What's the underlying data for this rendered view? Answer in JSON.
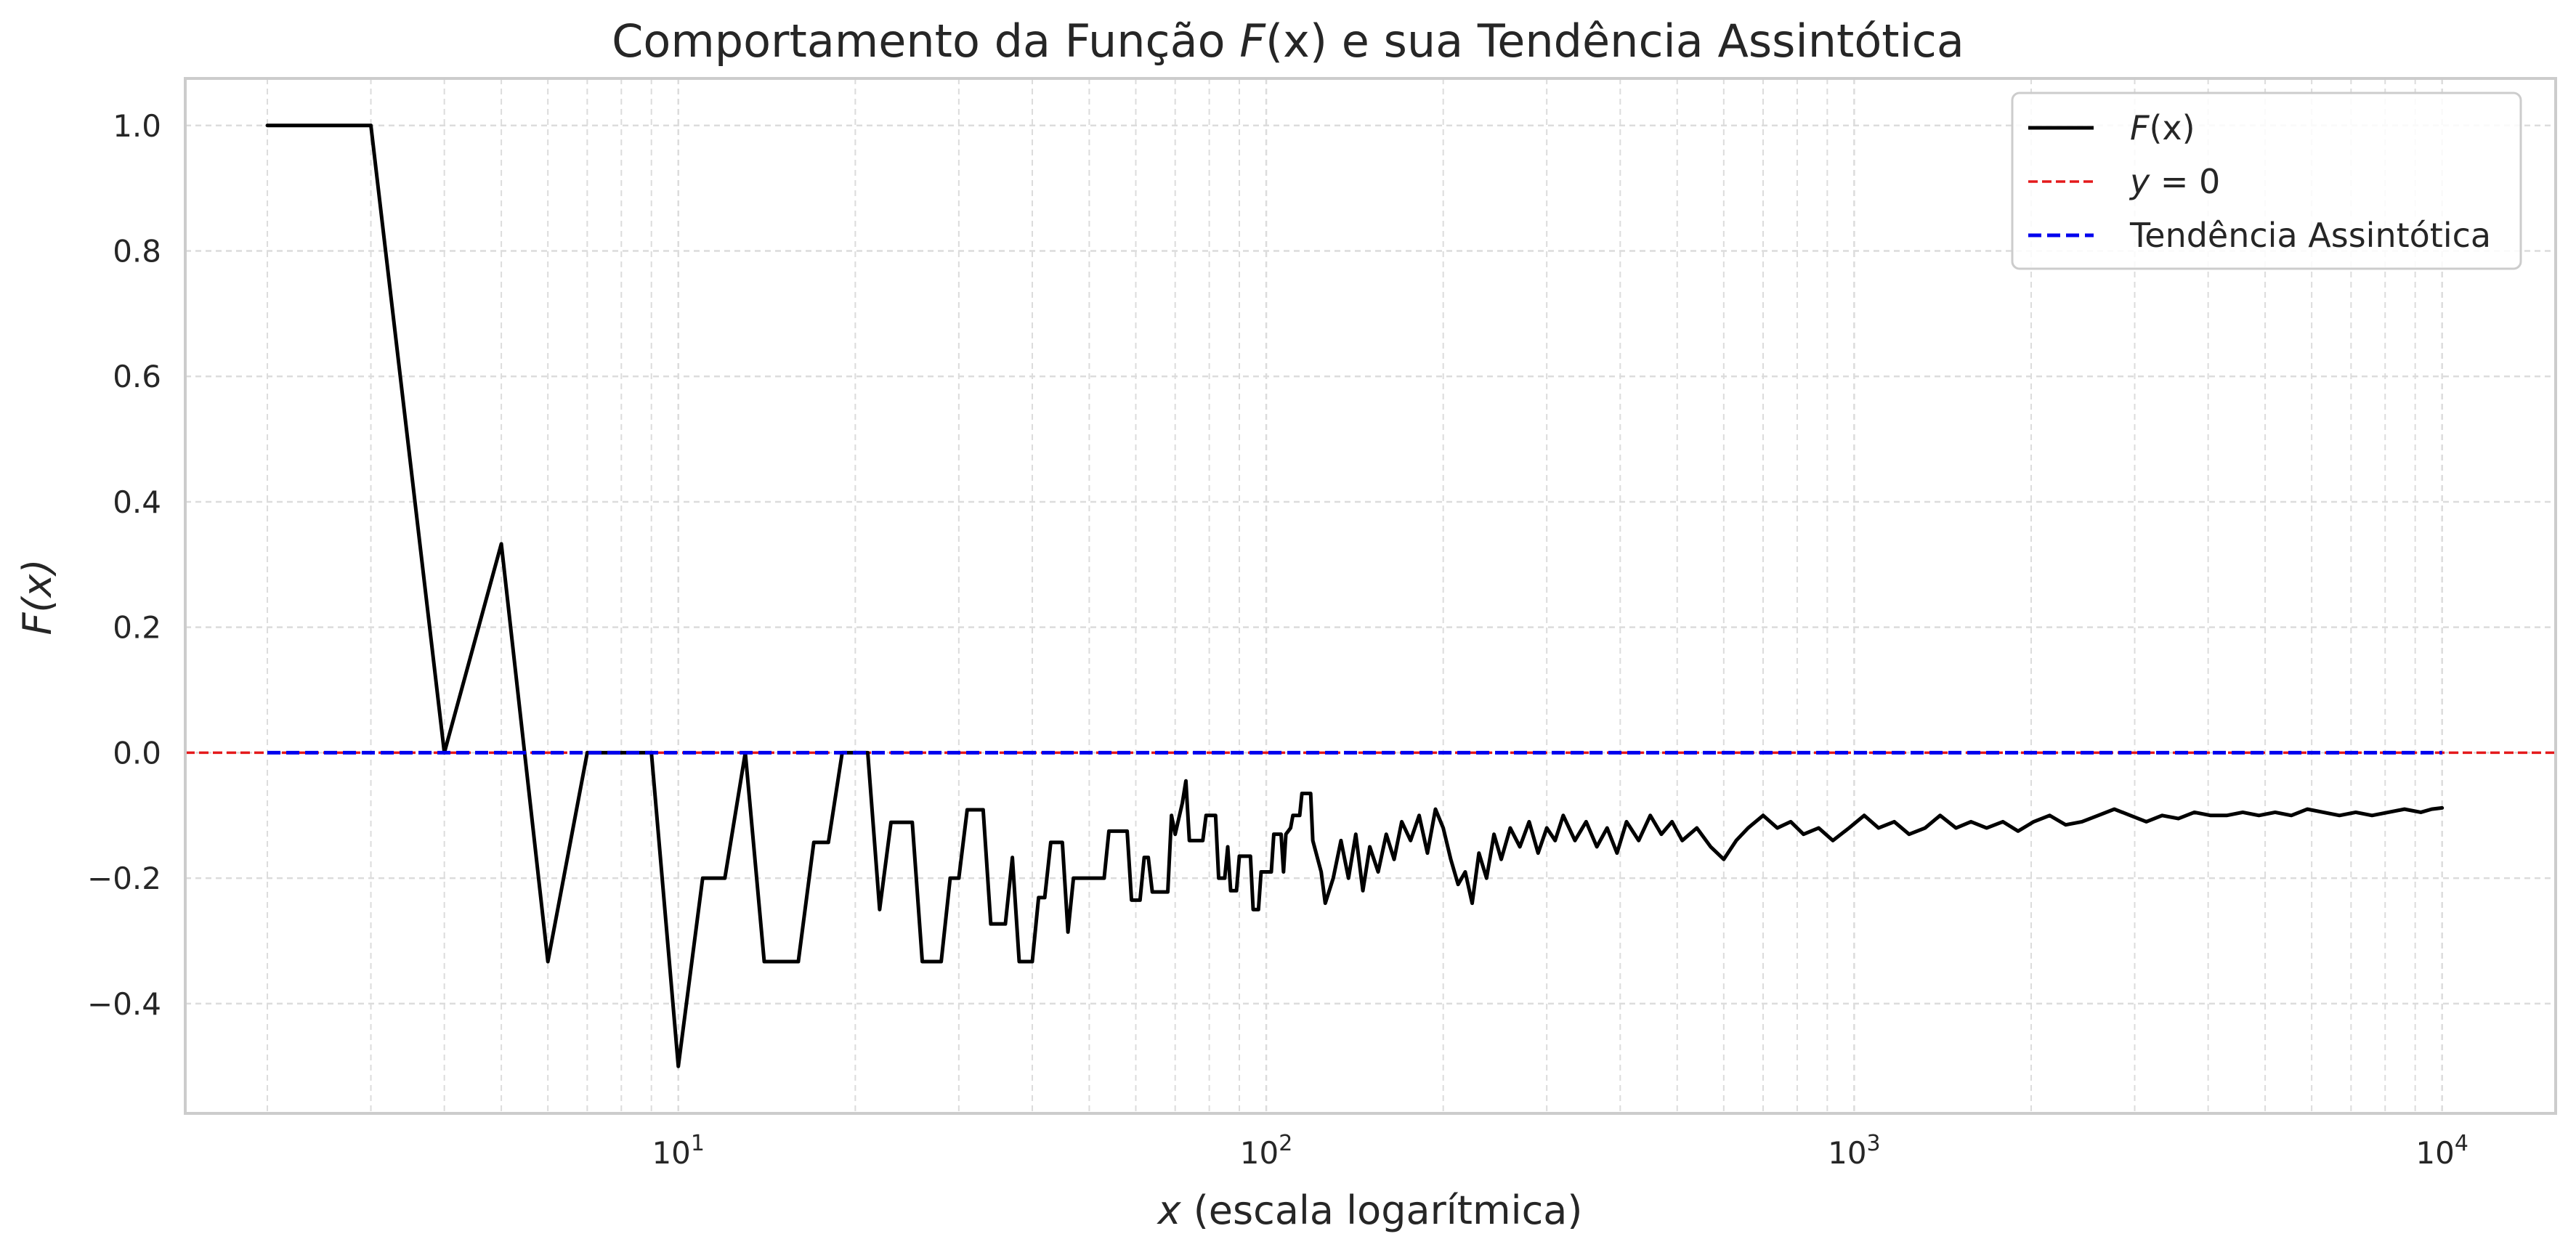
{
  "chart_data": {
    "type": "line",
    "title_main": "Comportamento da Função",
    "title_fx": "F",
    "title_fx_arg": "(x)",
    "title_rest": "e sua Tendência Assintótica",
    "xlabel_var": "x",
    "xlabel_rest": "(escala logarítmica)",
    "ylabel": "F(x)",
    "x_scale": "log",
    "xlim": [
      1.45,
      15600
    ],
    "ylim": [
      -0.575,
      1.075
    ],
    "grid": true,
    "legend_position": "top-right",
    "x_ticks": [
      {
        "value": 10,
        "base": "10",
        "exp": "1"
      },
      {
        "value": 100,
        "base": "10",
        "exp": "2"
      },
      {
        "value": 1000,
        "base": "10",
        "exp": "3"
      },
      {
        "value": 10000,
        "base": "10",
        "exp": "4"
      }
    ],
    "y_ticks": [
      {
        "value": 1.0,
        "label": "1.0"
      },
      {
        "value": 0.8,
        "label": "0.8"
      },
      {
        "value": 0.6,
        "label": "0.6"
      },
      {
        "value": 0.4,
        "label": "0.4"
      },
      {
        "value": 0.2,
        "label": "0.2"
      },
      {
        "value": 0.0,
        "label": "0.0"
      },
      {
        "value": -0.2,
        "label": "−0.2"
      },
      {
        "value": -0.4,
        "label": "−0.4"
      }
    ],
    "series": [
      {
        "name": "F(x)",
        "color": "#000000",
        "style": "solid",
        "points": [
          [
            2,
            1.0
          ],
          [
            3,
            1.0
          ],
          [
            4,
            0.0
          ],
          [
            5,
            0.333
          ],
          [
            6,
            -0.333
          ],
          [
            7,
            0.0
          ],
          [
            8,
            0.0
          ],
          [
            9,
            0.0
          ],
          [
            10,
            -0.5
          ],
          [
            11,
            -0.2
          ],
          [
            12,
            -0.2
          ],
          [
            13,
            0.0
          ],
          [
            14,
            -0.333
          ],
          [
            15,
            -0.333
          ],
          [
            16,
            -0.333
          ],
          [
            17,
            -0.143
          ],
          [
            18,
            -0.143
          ],
          [
            19,
            0.0
          ],
          [
            20,
            0.0
          ],
          [
            21,
            0.0
          ],
          [
            22,
            -0.25
          ],
          [
            23,
            -0.111
          ],
          [
            24,
            -0.111
          ],
          [
            25,
            -0.111
          ],
          [
            26,
            -0.333
          ],
          [
            27,
            -0.333
          ],
          [
            28,
            -0.333
          ],
          [
            29,
            -0.2
          ],
          [
            30,
            -0.2
          ],
          [
            31,
            -0.091
          ],
          [
            32,
            -0.091
          ],
          [
            33,
            -0.091
          ],
          [
            34,
            -0.273
          ],
          [
            35,
            -0.273
          ],
          [
            36,
            -0.273
          ],
          [
            37,
            -0.167
          ],
          [
            38,
            -0.333
          ],
          [
            39,
            -0.333
          ],
          [
            40,
            -0.333
          ],
          [
            41,
            -0.231
          ],
          [
            42,
            -0.231
          ],
          [
            43,
            -0.143
          ],
          [
            44,
            -0.143
          ],
          [
            45,
            -0.143
          ],
          [
            46,
            -0.286
          ],
          [
            47,
            -0.2
          ],
          [
            48,
            -0.2
          ],
          [
            50,
            -0.2
          ],
          [
            53,
            -0.2
          ],
          [
            54,
            -0.125
          ],
          [
            58,
            -0.125
          ],
          [
            59,
            -0.235
          ],
          [
            61,
            -0.235
          ],
          [
            62,
            -0.167
          ],
          [
            63,
            -0.167
          ],
          [
            64,
            -0.222
          ],
          [
            68,
            -0.222
          ],
          [
            69,
            -0.1
          ],
          [
            70,
            -0.13
          ],
          [
            72,
            -0.08
          ],
          [
            73,
            -0.045
          ],
          [
            74,
            -0.14
          ],
          [
            78,
            -0.14
          ],
          [
            79,
            -0.1
          ],
          [
            82,
            -0.1
          ],
          [
            83,
            -0.2
          ],
          [
            85,
            -0.2
          ],
          [
            86,
            -0.15
          ],
          [
            87,
            -0.22
          ],
          [
            89,
            -0.22
          ],
          [
            90,
            -0.165
          ],
          [
            94,
            -0.165
          ],
          [
            95,
            -0.25
          ],
          [
            97,
            -0.25
          ],
          [
            98,
            -0.19
          ],
          [
            102,
            -0.19
          ],
          [
            103,
            -0.13
          ],
          [
            106,
            -0.13
          ],
          [
            107,
            -0.19
          ],
          [
            108,
            -0.13
          ],
          [
            110,
            -0.12
          ],
          [
            111,
            -0.1
          ],
          [
            114,
            -0.1
          ],
          [
            115,
            -0.065
          ],
          [
            119,
            -0.065
          ],
          [
            120,
            -0.14
          ],
          [
            124,
            -0.19
          ],
          [
            126,
            -0.24
          ],
          [
            130,
            -0.2
          ],
          [
            134,
            -0.14
          ],
          [
            138,
            -0.2
          ],
          [
            142,
            -0.13
          ],
          [
            146,
            -0.22
          ],
          [
            150,
            -0.15
          ],
          [
            155,
            -0.19
          ],
          [
            160,
            -0.13
          ],
          [
            165,
            -0.17
          ],
          [
            170,
            -0.11
          ],
          [
            176,
            -0.14
          ],
          [
            182,
            -0.1
          ],
          [
            188,
            -0.16
          ],
          [
            194,
            -0.09
          ],
          [
            200,
            -0.12
          ],
          [
            206,
            -0.17
          ],
          [
            212,
            -0.21
          ],
          [
            218,
            -0.19
          ],
          [
            224,
            -0.24
          ],
          [
            230,
            -0.16
          ],
          [
            237,
            -0.2
          ],
          [
            244,
            -0.13
          ],
          [
            251,
            -0.17
          ],
          [
            260,
            -0.12
          ],
          [
            270,
            -0.15
          ],
          [
            280,
            -0.11
          ],
          [
            290,
            -0.16
          ],
          [
            300,
            -0.12
          ],
          [
            310,
            -0.14
          ],
          [
            320,
            -0.1
          ],
          [
            335,
            -0.14
          ],
          [
            350,
            -0.11
          ],
          [
            365,
            -0.15
          ],
          [
            380,
            -0.12
          ],
          [
            395,
            -0.16
          ],
          [
            410,
            -0.11
          ],
          [
            430,
            -0.14
          ],
          [
            450,
            -0.1
          ],
          [
            470,
            -0.13
          ],
          [
            490,
            -0.11
          ],
          [
            510,
            -0.14
          ],
          [
            540,
            -0.12
          ],
          [
            570,
            -0.15
          ],
          [
            600,
            -0.17
          ],
          [
            630,
            -0.14
          ],
          [
            660,
            -0.12
          ],
          [
            700,
            -0.1
          ],
          [
            740,
            -0.12
          ],
          [
            780,
            -0.11
          ],
          [
            820,
            -0.13
          ],
          [
            870,
            -0.12
          ],
          [
            920,
            -0.14
          ],
          [
            980,
            -0.12
          ],
          [
            1040,
            -0.1
          ],
          [
            1100,
            -0.12
          ],
          [
            1170,
            -0.11
          ],
          [
            1240,
            -0.13
          ],
          [
            1320,
            -0.12
          ],
          [
            1400,
            -0.1
          ],
          [
            1490,
            -0.12
          ],
          [
            1580,
            -0.11
          ],
          [
            1680,
            -0.12
          ],
          [
            1790,
            -0.11
          ],
          [
            1900,
            -0.125
          ],
          [
            2020,
            -0.11
          ],
          [
            2150,
            -0.1
          ],
          [
            2290,
            -0.115
          ],
          [
            2440,
            -0.11
          ],
          [
            2600,
            -0.1
          ],
          [
            2770,
            -0.09
          ],
          [
            2950,
            -0.1
          ],
          [
            3140,
            -0.11
          ],
          [
            3340,
            -0.1
          ],
          [
            3560,
            -0.105
          ],
          [
            3790,
            -0.095
          ],
          [
            4040,
            -0.1
          ],
          [
            4300,
            -0.1
          ],
          [
            4580,
            -0.095
          ],
          [
            4880,
            -0.1
          ],
          [
            5200,
            -0.095
          ],
          [
            5540,
            -0.1
          ],
          [
            5900,
            -0.09
          ],
          [
            6280,
            -0.095
          ],
          [
            6690,
            -0.1
          ],
          [
            7130,
            -0.095
          ],
          [
            7600,
            -0.1
          ],
          [
            8100,
            -0.095
          ],
          [
            8630,
            -0.09
          ],
          [
            9200,
            -0.095
          ],
          [
            9600,
            -0.09
          ],
          [
            10000,
            -0.088
          ]
        ]
      },
      {
        "name": "y = 0",
        "color": "#e41a1c",
        "style": "dashed",
        "y": 0
      },
      {
        "name": "Tendência Assintótica",
        "color": "#0000ee",
        "style": "dashed",
        "points": [
          [
            2,
            0.0
          ],
          [
            10000,
            0.0
          ]
        ]
      }
    ],
    "legend": {
      "fx_var": "F",
      "fx_arg": "(x)",
      "y0_var": "y",
      "y0_rest": " = 0",
      "trend": "Tendência Assintótica"
    }
  }
}
